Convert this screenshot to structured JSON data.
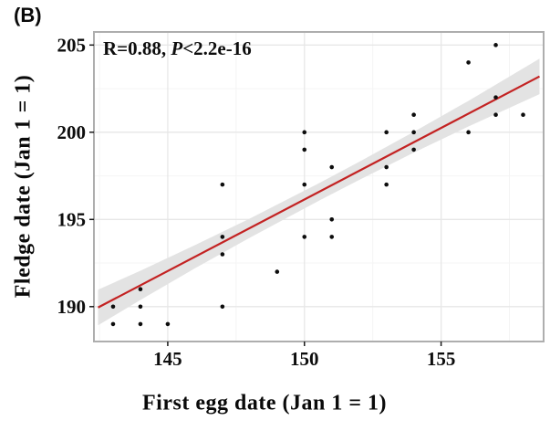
{
  "panel_label": "(B)",
  "annotation": {
    "prefix": "R=0.88, ",
    "p": "P",
    "suffix": "<2.2e-16"
  },
  "chart_data": {
    "type": "scatter",
    "title": "",
    "xlabel": "First egg date (Jan 1 = 1)",
    "ylabel": "Fledge date (Jan 1 = 1)",
    "xlim": [
      142.3,
      158.75
    ],
    "ylim": [
      188.0,
      205.75
    ],
    "xticks": [
      145,
      150,
      155
    ],
    "yticks": [
      190,
      195,
      200,
      205
    ],
    "x_minor_gridlines": [
      142.5,
      147.5,
      152.5,
      157.5
    ],
    "y_minor_gridlines": [
      192.5,
      197.5,
      202.5
    ],
    "grid": "major and minor, light gray, white panel background",
    "legend_position": "none",
    "points": [
      [
        143,
        189
      ],
      [
        143,
        190
      ],
      [
        144,
        189
      ],
      [
        144,
        190
      ],
      [
        144,
        191
      ],
      [
        145,
        189
      ],
      [
        147,
        190
      ],
      [
        147,
        193
      ],
      [
        147,
        194
      ],
      [
        147,
        197
      ],
      [
        149,
        192
      ],
      [
        150,
        194
      ],
      [
        150,
        197
      ],
      [
        150,
        199
      ],
      [
        150,
        200
      ],
      [
        151,
        194
      ],
      [
        151,
        195
      ],
      [
        151,
        198
      ],
      [
        153,
        197
      ],
      [
        153,
        198
      ],
      [
        153,
        200
      ],
      [
        154,
        199
      ],
      [
        154,
        200
      ],
      [
        154,
        201
      ],
      [
        156,
        200
      ],
      [
        156,
        204
      ],
      [
        157,
        201
      ],
      [
        157,
        202
      ],
      [
        157,
        205
      ],
      [
        158,
        201
      ]
    ],
    "regression_line": {
      "x1": 142.45,
      "y1": 189.95,
      "x2": 158.6,
      "y2": 203.2
    },
    "ci_band": {
      "x": [
        142.45,
        144.0,
        146.0,
        148.0,
        150.55,
        152.0,
        154.0,
        156.0,
        158.6
      ],
      "upper": [
        190.97,
        192.06,
        193.53,
        195.05,
        197.09,
        198.3,
        200.02,
        201.8,
        204.22
      ],
      "lower": [
        188.93,
        190.38,
        192.2,
        193.95,
        196.09,
        197.26,
        198.83,
        200.33,
        202.18
      ]
    },
    "colors": {
      "regression_line": "#c32222",
      "ci_band": "#e3e3e3",
      "point": "#0d0d0d",
      "grid_major": "#e7e7e7",
      "grid_minor": "#f4f4f4",
      "panel_border": "#aeaeae",
      "tick_mark": "#1a1a1a",
      "text": "#0d0d0d"
    }
  }
}
